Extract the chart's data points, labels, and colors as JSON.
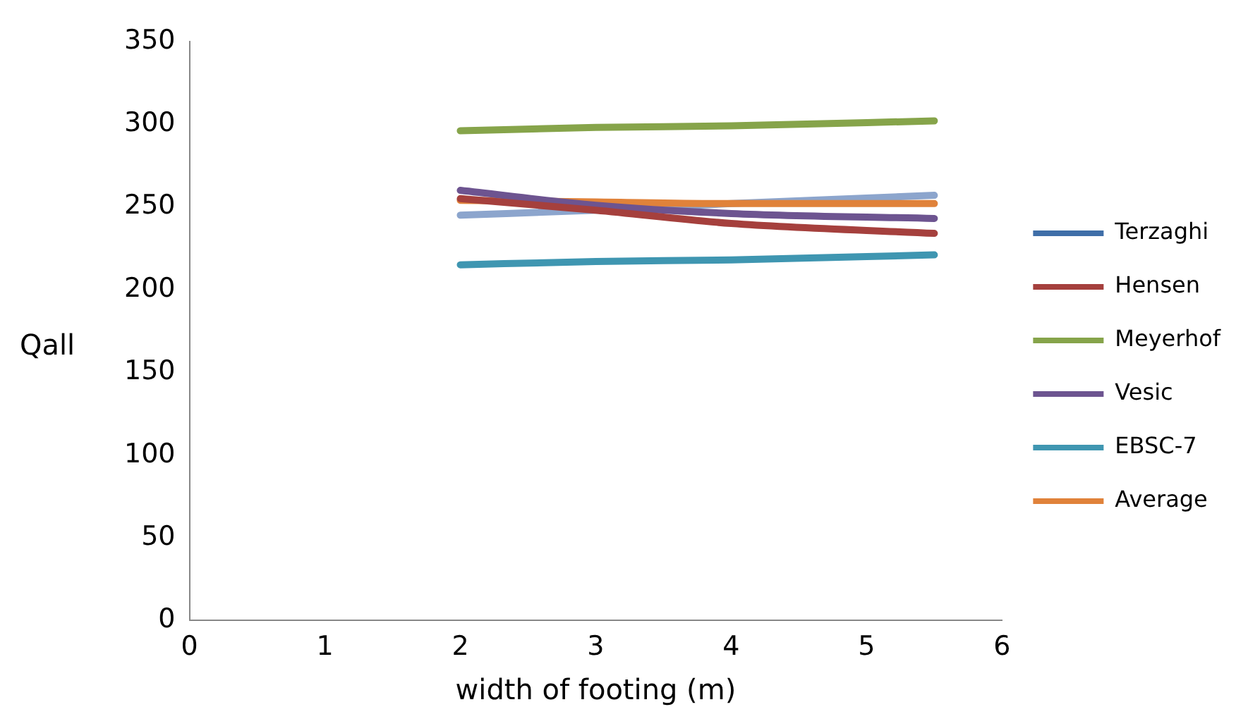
{
  "chart_data": {
    "type": "line",
    "xlabel": "width of footing (m)",
    "ylabel": "Qall",
    "x": [
      2,
      3,
      4,
      5.5
    ],
    "series": [
      {
        "name": "Terzaghi",
        "color": "#3f6ea8",
        "values": [
          null,
          null,
          null,
          null
        ]
      },
      {
        "name": "Hensen",
        "color": "#a5403d",
        "values": [
          255,
          248,
          240,
          234
        ]
      },
      {
        "name": "Meyerhof",
        "color": "#86a44a",
        "values": [
          296,
          298,
          299,
          302
        ]
      },
      {
        "name": "Vesic",
        "color": "#6d5490",
        "values": [
          260,
          251,
          246,
          243
        ]
      },
      {
        "name": "EBSC-7",
        "color": "#3f96b1",
        "values": [
          215,
          217,
          218,
          221
        ]
      },
      {
        "name": "Average",
        "color": "#e0823a",
        "values": [
          254,
          253,
          252,
          252
        ]
      },
      {
        "color": "#8ca5cd",
        "values": [
          245,
          248,
          252,
          257
        ]
      }
    ],
    "xlim": [
      0,
      6
    ],
    "xticks": [
      0,
      1,
      2,
      3,
      4,
      5,
      6
    ],
    "ylim": [
      0,
      350
    ],
    "yticks": [
      0,
      50,
      100,
      150,
      200,
      250,
      300,
      350
    ],
    "grid": false,
    "legend": "right",
    "marker": "none",
    "line_style": "solid"
  }
}
